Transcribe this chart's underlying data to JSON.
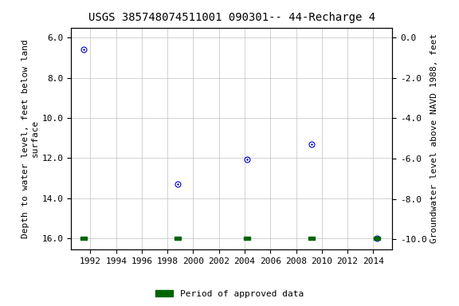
{
  "title": "USGS 385748074511001 090301-- 44-Recharge 4",
  "ylabel_left": "Depth to water level, feet below land\nsurface",
  "ylabel_right": "Groundwater level above NAVD 1988, feet",
  "data_x": [
    1991.5,
    1998.8,
    2004.2,
    2009.2,
    2014.3
  ],
  "data_y": [
    6.6,
    13.3,
    12.05,
    11.3,
    16.0
  ],
  "approved_x": [
    1991.5,
    1998.8,
    2004.2,
    2009.2,
    2014.3
  ],
  "ylim_left": [
    16.55,
    5.5
  ],
  "ylim_right": [
    -10.5,
    0.5
  ],
  "xlim": [
    1990.5,
    2015.5
  ],
  "xticks": [
    1992,
    1994,
    1996,
    1998,
    2000,
    2002,
    2004,
    2006,
    2008,
    2010,
    2012,
    2014
  ],
  "yticks_left": [
    6.0,
    8.0,
    10.0,
    12.0,
    14.0,
    16.0
  ],
  "yticks_right": [
    0.0,
    -2.0,
    -4.0,
    -6.0,
    -8.0,
    -10.0
  ],
  "marker_color": "#0000cc",
  "marker_size": 5,
  "marker_inner_size": 1.5,
  "approved_color": "#006400",
  "background_color": "#ffffff",
  "grid_color": "#c0c0c0",
  "title_fontsize": 10,
  "label_fontsize": 8,
  "tick_fontsize": 8,
  "legend_label": "Period of approved data",
  "font_family": "monospace"
}
